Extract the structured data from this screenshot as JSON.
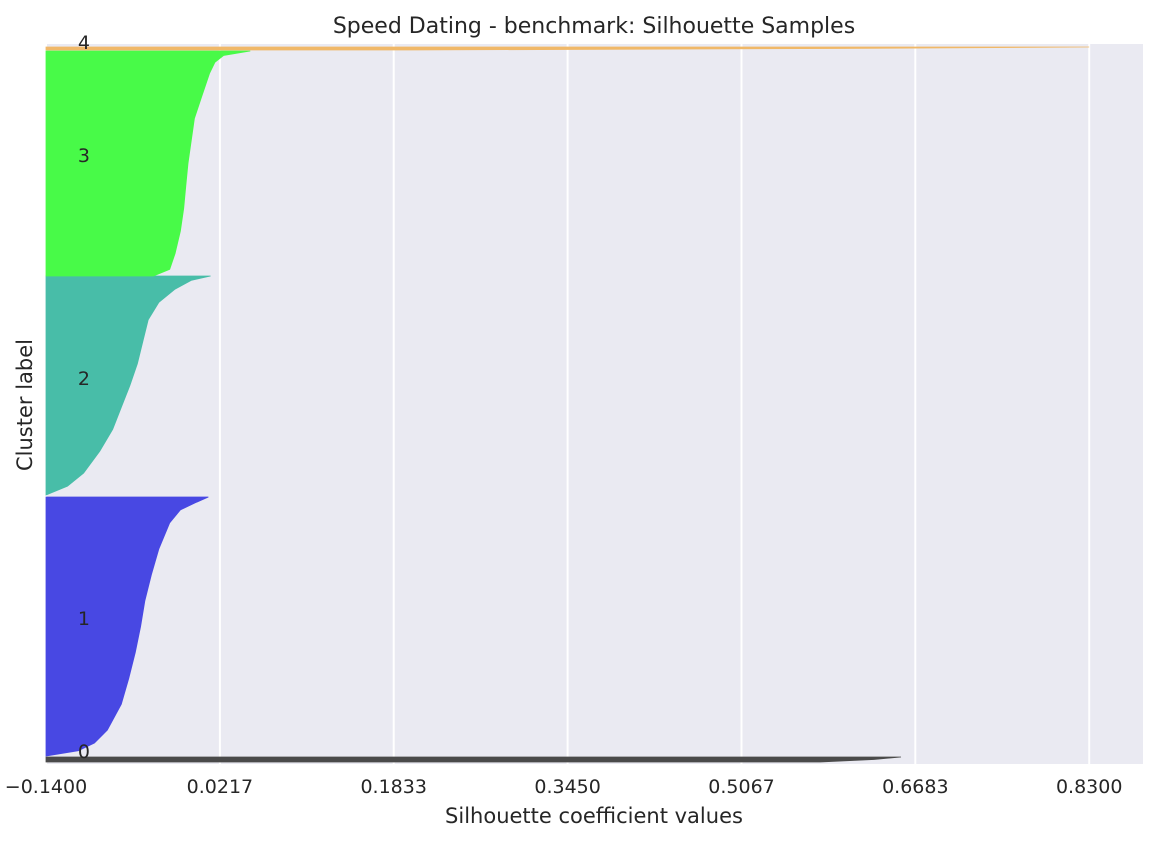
{
  "chart_data": {
    "type": "area",
    "title": "Speed Dating - benchmark: Silhouette Samples",
    "xlabel": "Silhouette coefficient values",
    "ylabel": "Cluster label",
    "xlim": [
      -0.14,
      0.88
    ],
    "x_ticks": [
      -0.14,
      0.0217,
      0.1833,
      0.345,
      0.5067,
      0.6683,
      0.83
    ],
    "x_tick_labels": [
      "−0.1400",
      "0.0217",
      "0.1833",
      "0.3450",
      "0.5067",
      "0.6683",
      "0.8300"
    ],
    "y_ticks": [
      0,
      1,
      2,
      3,
      4
    ],
    "grid": true,
    "legend": "none",
    "background": "#eaeaf2",
    "grid_color": "#ffffff",
    "clusters": [
      {
        "label": "0",
        "color": "#4a4a4a",
        "profile": [
          [
            0,
            0.655
          ],
          [
            0.5,
            0.63
          ],
          [
            1,
            0.58
          ]
        ]
      },
      {
        "label": "1",
        "color": "#4848e3",
        "profile": [
          [
            0,
            0.011
          ],
          [
            0.02,
            0.0
          ],
          [
            0.05,
            -0.015
          ],
          [
            0.1,
            -0.025
          ],
          [
            0.2,
            -0.035
          ],
          [
            0.3,
            -0.042
          ],
          [
            0.4,
            -0.048
          ],
          [
            0.5,
            -0.052
          ],
          [
            0.6,
            -0.057
          ],
          [
            0.7,
            -0.063
          ],
          [
            0.8,
            -0.07
          ],
          [
            0.9,
            -0.083
          ],
          [
            0.95,
            -0.095
          ],
          [
            0.98,
            -0.11
          ],
          [
            1,
            -0.14
          ]
        ]
      },
      {
        "label": "2",
        "color": "#48bda8",
        "profile": [
          [
            0,
            0.013
          ],
          [
            0.02,
            -0.005
          ],
          [
            0.06,
            -0.02
          ],
          [
            0.12,
            -0.035
          ],
          [
            0.2,
            -0.045
          ],
          [
            0.3,
            -0.05
          ],
          [
            0.4,
            -0.055
          ],
          [
            0.5,
            -0.062
          ],
          [
            0.6,
            -0.07
          ],
          [
            0.7,
            -0.078
          ],
          [
            0.8,
            -0.09
          ],
          [
            0.9,
            -0.105
          ],
          [
            0.96,
            -0.12
          ],
          [
            1,
            -0.14
          ]
        ]
      },
      {
        "label": "3",
        "color": "#48fa48",
        "profile": [
          [
            0,
            0.05
          ],
          [
            0.02,
            0.025
          ],
          [
            0.05,
            0.017
          ],
          [
            0.1,
            0.012
          ],
          [
            0.2,
            0.005
          ],
          [
            0.3,
            -0.002
          ],
          [
            0.4,
            -0.005
          ],
          [
            0.5,
            -0.008
          ],
          [
            0.6,
            -0.01
          ],
          [
            0.7,
            -0.012
          ],
          [
            0.8,
            -0.015
          ],
          [
            0.9,
            -0.02
          ],
          [
            0.97,
            -0.025
          ],
          [
            1,
            -0.04
          ]
        ]
      },
      {
        "label": "4",
        "color": "#f0b868",
        "profile": [
          [
            0,
            0.83
          ],
          [
            0.5,
            0.6
          ],
          [
            1,
            0.2
          ]
        ]
      }
    ]
  }
}
